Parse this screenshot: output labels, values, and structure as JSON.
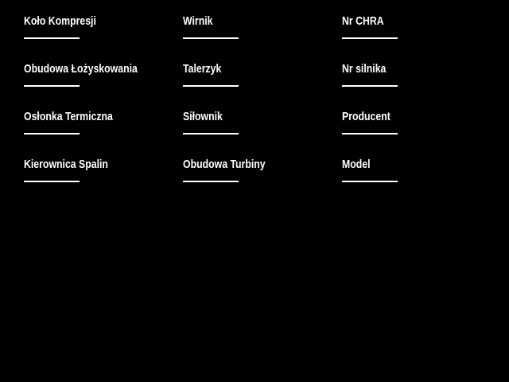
{
  "page": {
    "background_color": "#000000",
    "text_color": "#ffffff"
  },
  "form": {
    "columns": [
      {
        "fields": [
          {
            "label": "Koło Kompresji",
            "value": ""
          },
          {
            "label": "Obudowa Łożyskowania",
            "value": ""
          },
          {
            "label": "Osłonka Termiczna",
            "value": ""
          },
          {
            "label": "Kierownica Spalin",
            "value": ""
          }
        ]
      },
      {
        "fields": [
          {
            "label": "Wirnik",
            "value": ""
          },
          {
            "label": "Talerzyk",
            "value": ""
          },
          {
            "label": "Siłownik",
            "value": ""
          },
          {
            "label": "Obudowa Turbiny",
            "value": ""
          }
        ]
      },
      {
        "fields": [
          {
            "label": "Nr CHRA",
            "value": ""
          },
          {
            "label": "Nr silnika",
            "value": ""
          },
          {
            "label": "Producent",
            "value": ""
          },
          {
            "label": "Model",
            "value": ""
          }
        ]
      }
    ]
  }
}
